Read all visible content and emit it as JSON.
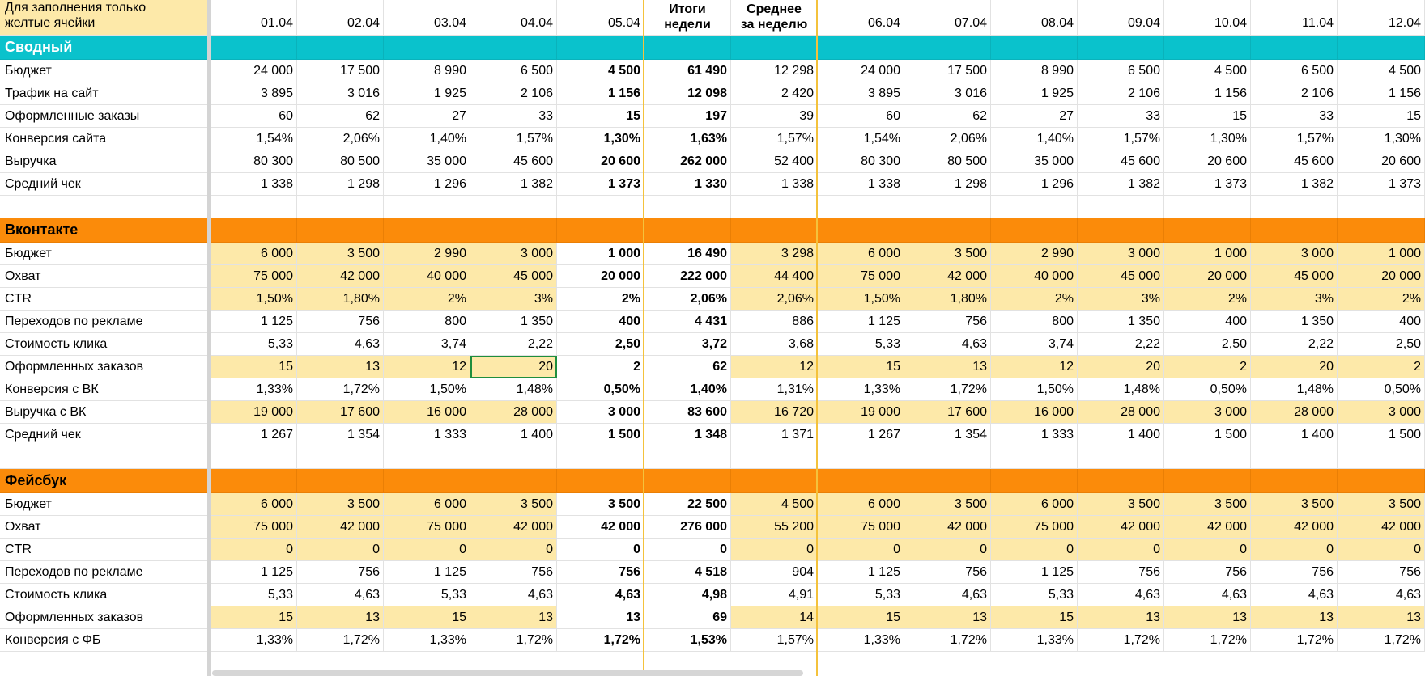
{
  "header": {
    "note_line1": "Для заполнения только",
    "note_line2": "желтые ячейки",
    "dates_left": [
      "01.04",
      "02.04",
      "03.04",
      "04.04",
      "05.04"
    ],
    "totals_line1": "Итоги",
    "totals_line2": "недели",
    "avg_line1": "Среднее",
    "avg_line2": "за неделю",
    "dates_right": [
      "06.04",
      "07.04",
      "08.04",
      "09.04",
      "10.04",
      "11.04",
      "12.04"
    ]
  },
  "colors": {
    "summary_section": "#0ac2cc",
    "channel_section": "#fb8b0a",
    "input_cell": "#fde9a9",
    "week_divider": "#f4c23c"
  },
  "selected_cell": {
    "row": "Оформленных заказов",
    "date": "04.04"
  },
  "sections": [
    {
      "title": "Сводный",
      "style": "cyan",
      "rows": [
        {
          "label": "Бюджет",
          "yellow": false,
          "values": [
            "24 000",
            "17 500",
            "8 990",
            "6 500",
            "4 500",
            "61 490",
            "12 298",
            "24 000",
            "17 500",
            "8 990",
            "6 500",
            "4 500",
            "6 500",
            "4 500"
          ]
        },
        {
          "label": "Трафик на сайт",
          "yellow": false,
          "values": [
            "3 895",
            "3 016",
            "1 925",
            "2 106",
            "1 156",
            "12 098",
            "2 420",
            "3 895",
            "3 016",
            "1 925",
            "2 106",
            "1 156",
            "2 106",
            "1 156"
          ]
        },
        {
          "label": "Оформленные заказы",
          "yellow": false,
          "values": [
            "60",
            "62",
            "27",
            "33",
            "15",
            "197",
            "39",
            "60",
            "62",
            "27",
            "33",
            "15",
            "33",
            "15"
          ]
        },
        {
          "label": "Конверсия сайта",
          "yellow": false,
          "values": [
            "1,54%",
            "2,06%",
            "1,40%",
            "1,57%",
            "1,30%",
            "1,63%",
            "1,57%",
            "1,54%",
            "2,06%",
            "1,40%",
            "1,57%",
            "1,30%",
            "1,57%",
            "1,30%"
          ]
        },
        {
          "label": "Выручка",
          "yellow": false,
          "values": [
            "80 300",
            "80 500",
            "35 000",
            "45 600",
            "20 600",
            "262 000",
            "52 400",
            "80 300",
            "80 500",
            "35 000",
            "45 600",
            "20 600",
            "45 600",
            "20 600"
          ]
        },
        {
          "label": "Средний чек",
          "yellow": false,
          "values": [
            "1 338",
            "1 298",
            "1 296",
            "1 382",
            "1 373",
            "1 330",
            "1 338",
            "1 338",
            "1 298",
            "1 296",
            "1 382",
            "1 373",
            "1 382",
            "1 373"
          ]
        }
      ]
    },
    {
      "title": "Вконтакте",
      "style": "orange",
      "rows": [
        {
          "label": "Бюджет",
          "yellow": true,
          "values": [
            "6 000",
            "3 500",
            "2 990",
            "3 000",
            "1 000",
            "16 490",
            "3 298",
            "6 000",
            "3 500",
            "2 990",
            "3 000",
            "1 000",
            "3 000",
            "1 000"
          ]
        },
        {
          "label": "Охват",
          "yellow": true,
          "values": [
            "75 000",
            "42 000",
            "40 000",
            "45 000",
            "20 000",
            "222 000",
            "44 400",
            "75 000",
            "42 000",
            "40 000",
            "45 000",
            "20 000",
            "45 000",
            "20 000"
          ]
        },
        {
          "label": "CTR",
          "yellow": true,
          "values": [
            "1,50%",
            "1,80%",
            "2%",
            "3%",
            "2%",
            "2,06%",
            "2,06%",
            "1,50%",
            "1,80%",
            "2%",
            "3%",
            "2%",
            "3%",
            "2%"
          ]
        },
        {
          "label": "Переходов по рекламе",
          "yellow": false,
          "values": [
            "1 125",
            "756",
            "800",
            "1 350",
            "400",
            "4 431",
            "886",
            "1 125",
            "756",
            "800",
            "1 350",
            "400",
            "1 350",
            "400"
          ]
        },
        {
          "label": "Стоимость клика",
          "yellow": false,
          "values": [
            "5,33",
            "4,63",
            "3,74",
            "2,22",
            "2,50",
            "3,72",
            "3,68",
            "5,33",
            "4,63",
            "3,74",
            "2,22",
            "2,50",
            "2,22",
            "2,50"
          ]
        },
        {
          "label": "Оформленных заказов",
          "yellow": true,
          "values": [
            "15",
            "13",
            "12",
            "20",
            "2",
            "62",
            "12",
            "15",
            "13",
            "12",
            "20",
            "2",
            "20",
            "2"
          ]
        },
        {
          "label": "Конверсия с ВК",
          "yellow": false,
          "values": [
            "1,33%",
            "1,72%",
            "1,50%",
            "1,48%",
            "0,50%",
            "1,40%",
            "1,31%",
            "1,33%",
            "1,72%",
            "1,50%",
            "1,48%",
            "0,50%",
            "1,48%",
            "0,50%"
          ]
        },
        {
          "label": "Выручка с ВК",
          "yellow": true,
          "values": [
            "19 000",
            "17 600",
            "16 000",
            "28 000",
            "3 000",
            "83 600",
            "16 720",
            "19 000",
            "17 600",
            "16 000",
            "28 000",
            "3 000",
            "28 000",
            "3 000"
          ]
        },
        {
          "label": "Средний чек",
          "yellow": false,
          "values": [
            "1 267",
            "1 354",
            "1 333",
            "1 400",
            "1 500",
            "1 348",
            "1 371",
            "1 267",
            "1 354",
            "1 333",
            "1 400",
            "1 500",
            "1 400",
            "1 500"
          ]
        }
      ]
    },
    {
      "title": "Фейсбук",
      "style": "orange",
      "rows": [
        {
          "label": "Бюджет",
          "yellow": true,
          "values": [
            "6 000",
            "3 500",
            "6 000",
            "3 500",
            "3 500",
            "22 500",
            "4 500",
            "6 000",
            "3 500",
            "6 000",
            "3 500",
            "3 500",
            "3 500",
            "3 500"
          ]
        },
        {
          "label": "Охват",
          "yellow": true,
          "values": [
            "75 000",
            "42 000",
            "75 000",
            "42 000",
            "42 000",
            "276 000",
            "55 200",
            "75 000",
            "42 000",
            "75 000",
            "42 000",
            "42 000",
            "42 000",
            "42 000"
          ]
        },
        {
          "label": "CTR",
          "yellow": true,
          "values": [
            "0",
            "0",
            "0",
            "0",
            "0",
            "0",
            "0",
            "0",
            "0",
            "0",
            "0",
            "0",
            "0",
            "0"
          ]
        },
        {
          "label": "Переходов по рекламе",
          "yellow": false,
          "values": [
            "1 125",
            "756",
            "1 125",
            "756",
            "756",
            "4 518",
            "904",
            "1 125",
            "756",
            "1 125",
            "756",
            "756",
            "756",
            "756"
          ]
        },
        {
          "label": "Стоимость клика",
          "yellow": false,
          "values": [
            "5,33",
            "4,63",
            "5,33",
            "4,63",
            "4,63",
            "4,98",
            "4,91",
            "5,33",
            "4,63",
            "5,33",
            "4,63",
            "4,63",
            "4,63",
            "4,63"
          ]
        },
        {
          "label": "Оформленных заказов",
          "yellow": true,
          "values": [
            "15",
            "13",
            "15",
            "13",
            "13",
            "69",
            "14",
            "15",
            "13",
            "15",
            "13",
            "13",
            "13",
            "13"
          ]
        },
        {
          "label": "Конверсия с ФБ",
          "yellow": false,
          "values": [
            "1,33%",
            "1,72%",
            "1,33%",
            "1,72%",
            "1,72%",
            "1,53%",
            "1,57%",
            "1,33%",
            "1,72%",
            "1,33%",
            "1,72%",
            "1,72%",
            "1,72%",
            "1,72%"
          ]
        }
      ]
    }
  ]
}
